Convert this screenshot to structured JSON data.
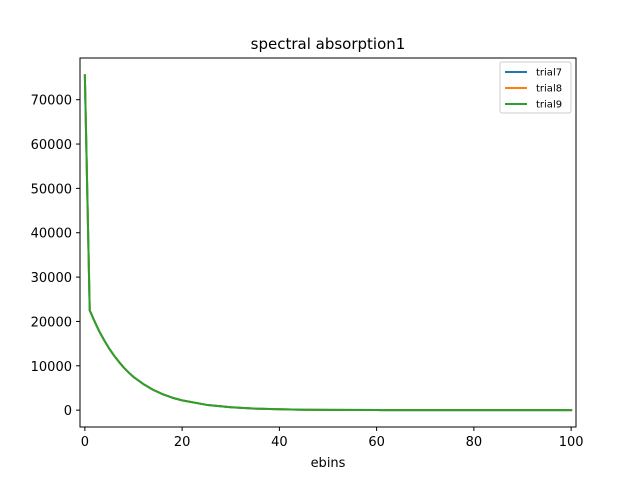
{
  "chart_data": {
    "type": "line",
    "title": "spectral absorption1",
    "xlabel": "ebins",
    "ylabel": "",
    "xlim": [
      -1,
      101
    ],
    "ylim": [
      -3800,
      79400
    ],
    "x_ticks": [
      0,
      20,
      40,
      60,
      80,
      100
    ],
    "y_ticks": [
      0,
      10000,
      20000,
      30000,
      40000,
      50000,
      60000,
      70000
    ],
    "grid": false,
    "legend_position": "top-right",
    "series": [
      {
        "name": "trial7",
        "color": "#1f77b4",
        "x": [
          0,
          1,
          2,
          3,
          4,
          5,
          6,
          7,
          8,
          9,
          10,
          12,
          14,
          16,
          18,
          20,
          25,
          30,
          35,
          40,
          45,
          50,
          60,
          70,
          80,
          90,
          100
        ],
        "values": [
          75500,
          22500,
          20000,
          17700,
          15700,
          13900,
          12300,
          10900,
          9600,
          8500,
          7500,
          5900,
          4600,
          3600,
          2800,
          2200,
          1200,
          650,
          350,
          190,
          100,
          55,
          20,
          8,
          3,
          1,
          0
        ]
      },
      {
        "name": "trial8",
        "color": "#ff7f0e",
        "x": [
          0,
          1,
          2,
          3,
          4,
          5,
          6,
          7,
          8,
          9,
          10,
          12,
          14,
          16,
          18,
          20,
          25,
          30,
          35,
          40,
          45,
          50,
          60,
          70,
          80,
          90,
          100
        ],
        "values": [
          75500,
          22500,
          20000,
          17700,
          15700,
          13900,
          12300,
          10900,
          9600,
          8500,
          7500,
          5900,
          4600,
          3600,
          2800,
          2200,
          1200,
          650,
          350,
          190,
          100,
          55,
          20,
          8,
          3,
          1,
          0
        ]
      },
      {
        "name": "trial9",
        "color": "#2ca02c",
        "x": [
          0,
          1,
          2,
          3,
          4,
          5,
          6,
          7,
          8,
          9,
          10,
          12,
          14,
          16,
          18,
          20,
          25,
          30,
          35,
          40,
          45,
          50,
          60,
          70,
          80,
          90,
          100
        ],
        "values": [
          75500,
          22500,
          20000,
          17700,
          15700,
          13900,
          12300,
          10900,
          9600,
          8500,
          7500,
          5900,
          4600,
          3600,
          2800,
          2200,
          1200,
          650,
          350,
          190,
          100,
          55,
          20,
          8,
          3,
          1,
          0
        ]
      }
    ]
  }
}
